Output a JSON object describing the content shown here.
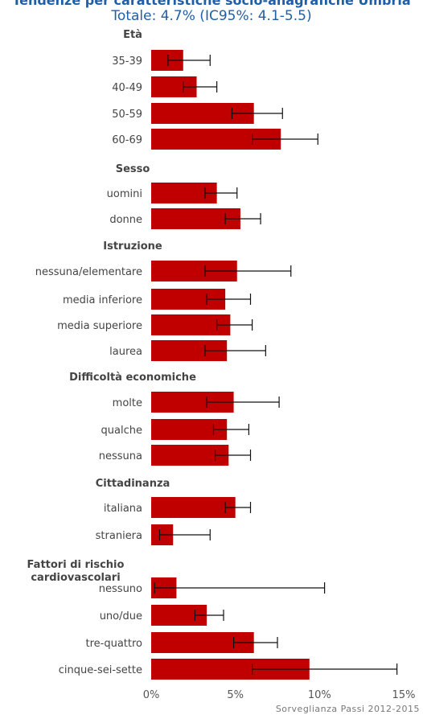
{
  "chart_data": {
    "type": "bar",
    "orientation": "horizontal",
    "title": "Tendenze per caratteristiche socio-anagrafiche Umbria",
    "subtitle": "Totale: 4.7% (IC95%: 4.1-5.5)",
    "xlim": [
      0,
      15
    ],
    "x_ticks": [
      "0%",
      "5%",
      "10%",
      "15%"
    ],
    "bar_color": "#c00000",
    "groups": [
      {
        "name": "Età",
        "items": [
          {
            "label": "35-39",
            "value": 1.9,
            "low": 1.0,
            "high": 3.5
          },
          {
            "label": "40-49",
            "value": 2.7,
            "low": 1.9,
            "high": 3.9
          },
          {
            "label": "50-59",
            "value": 6.1,
            "low": 4.8,
            "high": 7.8
          },
          {
            "label": "60-69",
            "value": 7.7,
            "low": 6.0,
            "high": 9.9
          }
        ]
      },
      {
        "name": "Sesso",
        "items": [
          {
            "label": "uomini",
            "value": 3.9,
            "low": 3.2,
            "high": 5.1
          },
          {
            "label": "donne",
            "value": 5.3,
            "low": 4.4,
            "high": 6.5
          }
        ]
      },
      {
        "name": "Istruzione",
        "items": [
          {
            "label": "nessuna/elementare",
            "value": 5.1,
            "low": 3.2,
            "high": 8.3
          },
          {
            "label": "media inferiore",
            "value": 4.4,
            "low": 3.3,
            "high": 5.9
          },
          {
            "label": "media superiore",
            "value": 4.7,
            "low": 3.9,
            "high": 6.0
          },
          {
            "label": "laurea",
            "value": 4.5,
            "low": 3.2,
            "high": 6.8
          }
        ]
      },
      {
        "name": "Difficoltà economiche",
        "items": [
          {
            "label": "molte",
            "value": 4.9,
            "low": 3.3,
            "high": 7.6
          },
          {
            "label": "qualche",
            "value": 4.5,
            "low": 3.7,
            "high": 5.8
          },
          {
            "label": "nessuna",
            "value": 4.6,
            "low": 3.8,
            "high": 5.9
          }
        ]
      },
      {
        "name": "Cittadinanza",
        "items": [
          {
            "label": "italiana",
            "value": 5.0,
            "low": 4.4,
            "high": 5.9
          },
          {
            "label": "straniera",
            "value": 1.3,
            "low": 0.5,
            "high": 3.5
          }
        ]
      },
      {
        "name": "Fattori di rischio cardiovascolari",
        "items": [
          {
            "label": "nessuno",
            "value": 1.5,
            "low": 0.2,
            "high": 10.3
          },
          {
            "label": "uno/due",
            "value": 3.3,
            "low": 2.6,
            "high": 4.3
          },
          {
            "label": "tre-quattro",
            "value": 6.1,
            "low": 4.9,
            "high": 7.5
          },
          {
            "label": "cinque-sei-sette",
            "value": 9.4,
            "low": 6.0,
            "high": 14.6
          }
        ]
      }
    ],
    "grid": false,
    "legend": "none"
  },
  "footer": {
    "source": "Sorveglianza Passi 2012-2015"
  }
}
